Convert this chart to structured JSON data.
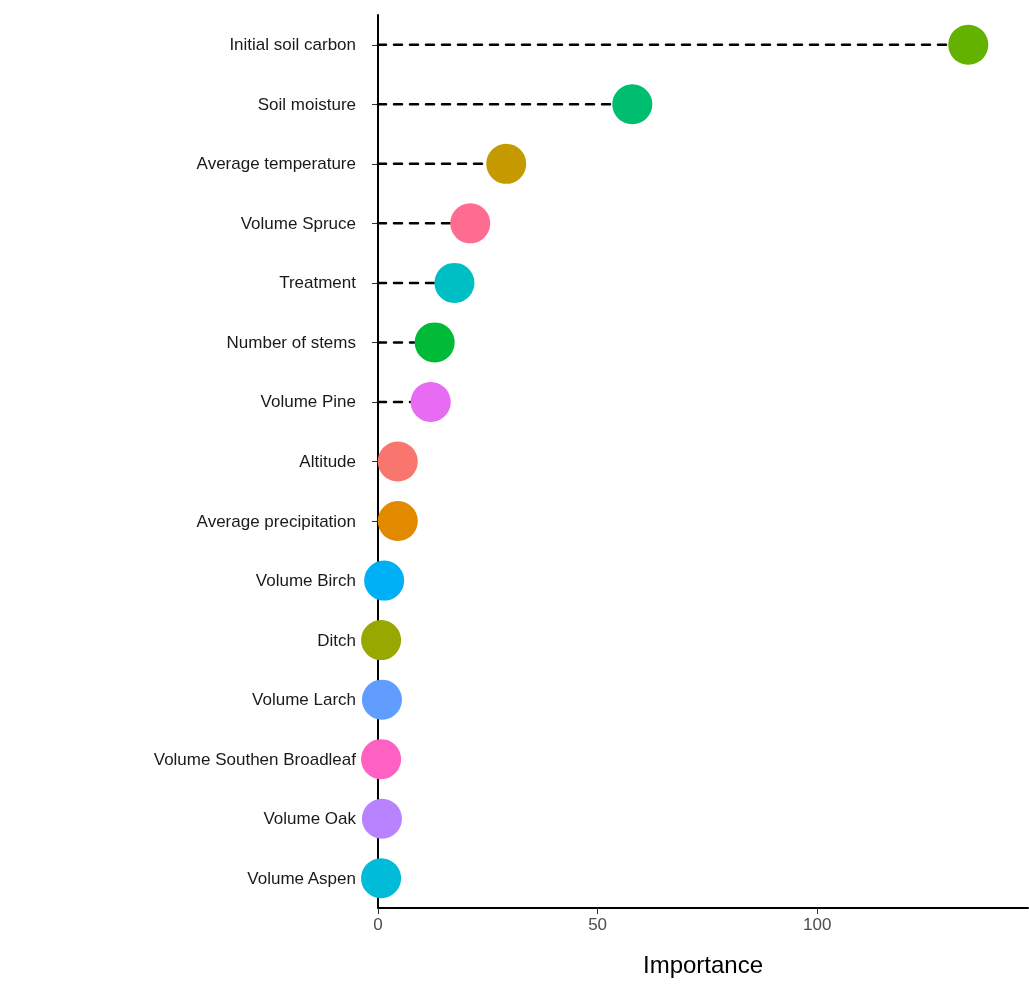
{
  "chart_data": {
    "type": "lollipop",
    "orientation": "horizontal",
    "xlabel": "Importance",
    "categories": [
      "Initial soil carbon",
      "Soil moisture",
      "Average temperature",
      "Volume Spruce",
      "Treatment",
      "Number of stems",
      "Volume Pine",
      "Altitude",
      "Average precipitation",
      "Volume Birch",
      "Ditch",
      "Volume Larch",
      "Volume Southen Broadleaf",
      "Volume Oak",
      "Volume Aspen"
    ],
    "values": [
      134.4,
      57.9,
      29.2,
      21.0,
      17.4,
      12.9,
      12.0,
      4.5,
      4.5,
      1.4,
      0.7,
      0.9,
      0.7,
      0.9,
      0.7
    ],
    "colors": [
      "#64b200",
      "#00be70",
      "#c49a00",
      "#ff6c91",
      "#00bfc4",
      "#00ba38",
      "#e76bf3",
      "#f8766d",
      "#e18a00",
      "#00b0f6",
      "#99a800",
      "#619cff",
      "#ff61c3",
      "#b983ff",
      "#00bcd8"
    ],
    "xlim": [
      0,
      148
    ],
    "xticks": [
      0,
      50,
      100
    ],
    "grid": false,
    "marker": "circle",
    "line_style": "dashed"
  }
}
